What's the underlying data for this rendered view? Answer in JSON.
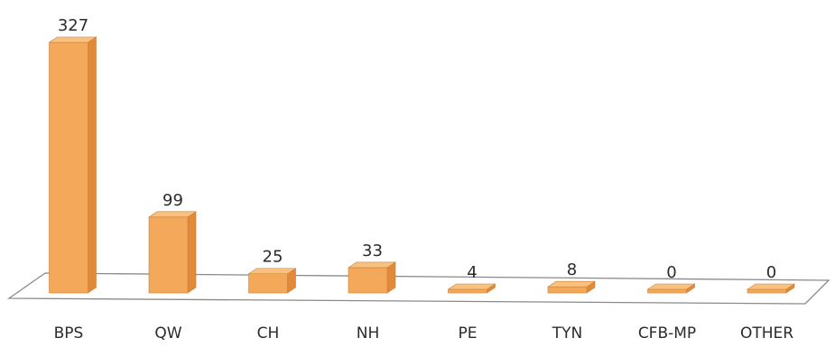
{
  "chart_data": {
    "type": "bar",
    "categories": [
      "BPS",
      "QW",
      "CH",
      "NH",
      "PE",
      "TYN",
      "CFB-MP",
      "OTHER"
    ],
    "values": [
      327,
      99,
      25,
      33,
      4,
      8,
      0,
      0
    ],
    "data_labels": [
      "327",
      "99",
      "25",
      "33",
      "4",
      "8",
      "0",
      "0"
    ],
    "title": "",
    "xlabel": "",
    "ylabel": "",
    "ylim": [
      0,
      327
    ],
    "grid": false,
    "legend": "none",
    "colors": {
      "bar_front": "#f4a95a",
      "bar_side": "#e08a3a",
      "bar_top": "#f8c27e",
      "bar_outline": "#c9803c",
      "floor": "#ffffff",
      "floor_outline": "#8a8a8a"
    }
  }
}
